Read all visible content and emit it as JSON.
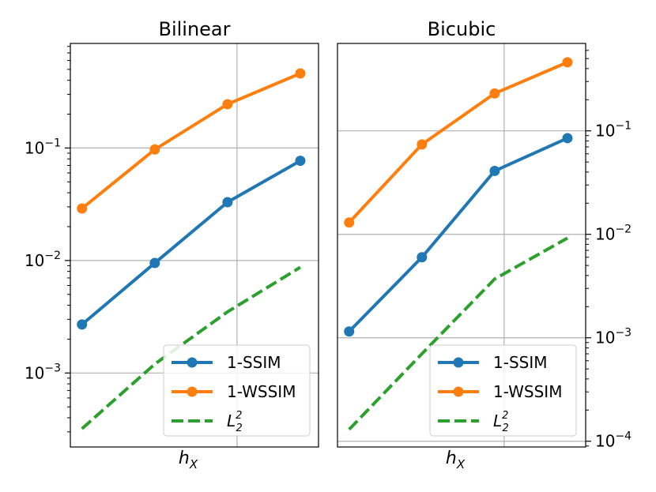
{
  "colors": {
    "ssim": "#1f77b4",
    "wssim": "#ff7f0e",
    "l2": "#2ca02c",
    "grid": "#b0b0b0"
  },
  "chart_data": [
    {
      "type": "line",
      "title": "Bilinear",
      "xlabel": "h",
      "xlabel_sub": "X",
      "yscale": "log",
      "ylim": [
        0.00022,
        0.85
      ],
      "yticks": [
        {
          "value": 0.001,
          "base": "10",
          "exp": "−3"
        },
        {
          "value": 0.01,
          "base": "10",
          "exp": "−2"
        },
        {
          "value": 0.1,
          "base": "10",
          "exp": "−1"
        }
      ],
      "yaxis_side": "left",
      "x": [
        1,
        2,
        3,
        4
      ],
      "xlim": [
        0.84,
        4.25
      ],
      "xgrid": [
        3.13
      ],
      "grid": true,
      "legend_position": "lower right",
      "series": [
        {
          "name": "1-SSIM",
          "values": [
            0.0027,
            0.0095,
            0.033,
            0.077
          ],
          "style": "solid",
          "markers": true
        },
        {
          "name": "1-WSSIM",
          "values": [
            0.029,
            0.097,
            0.245,
            0.46
          ],
          "style": "solid",
          "markers": true
        },
        {
          "name": "L",
          "name_sub": "2",
          "name_sup": "2",
          "values": [
            0.00032,
            0.0012,
            0.0035,
            0.0087
          ],
          "style": "dashed",
          "markers": false
        }
      ]
    },
    {
      "type": "line",
      "title": "Bicubic",
      "xlabel": "h",
      "xlabel_sub": "X",
      "yscale": "log",
      "ylim": [
        8.8e-05,
        0.7
      ],
      "yticks": [
        {
          "value": 0.0001,
          "base": "10",
          "exp": "−4"
        },
        {
          "value": 0.001,
          "base": "10",
          "exp": "−3"
        },
        {
          "value": 0.01,
          "base": "10",
          "exp": "−2"
        },
        {
          "value": 0.1,
          "base": "10",
          "exp": "−1"
        }
      ],
      "yaxis_side": "right",
      "x": [
        1,
        2,
        3,
        4
      ],
      "xlim": [
        0.84,
        4.25
      ],
      "xgrid": [
        3.13
      ],
      "grid": true,
      "legend_position": "lower right",
      "series": [
        {
          "name": "1-SSIM",
          "values": [
            0.00115,
            0.006,
            0.041,
            0.085
          ],
          "style": "solid",
          "markers": true
        },
        {
          "name": "1-WSSIM",
          "values": [
            0.013,
            0.074,
            0.23,
            0.46
          ],
          "style": "solid",
          "markers": true
        },
        {
          "name": "L",
          "name_sub": "2",
          "name_sup": "2",
          "values": [
            0.00013,
            0.0007,
            0.0037,
            0.0092
          ],
          "style": "dashed",
          "markers": false
        }
      ]
    }
  ]
}
